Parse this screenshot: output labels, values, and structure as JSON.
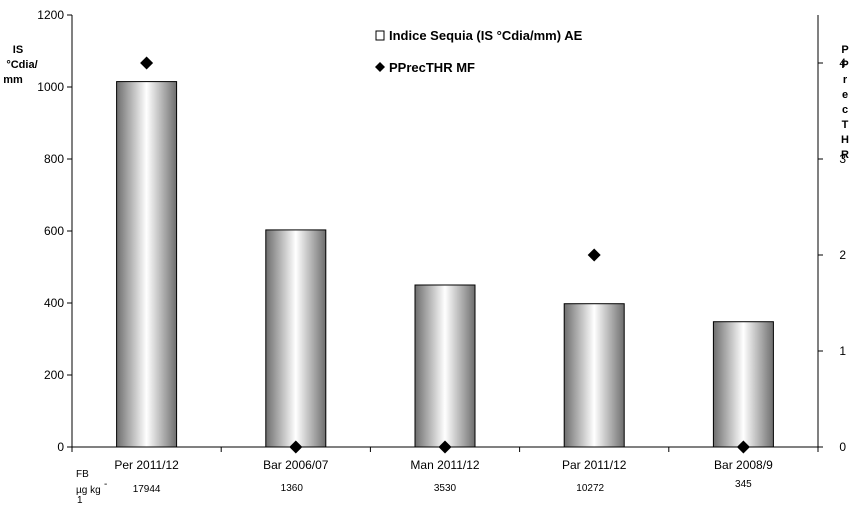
{
  "chart_data": {
    "type": "bar",
    "categories": [
      "Per 2011/12",
      "Bar 2006/07",
      "Man 2011/12",
      "Par 2011/12",
      "Bar  2008/9"
    ],
    "series": [
      {
        "name": "Indice Sequia (IS °Cdia/mm) AE",
        "kind": "bar",
        "axis": "left",
        "values": [
          1015,
          603,
          450,
          398,
          348
        ]
      },
      {
        "name": "PPrecTHR MF",
        "kind": "marker-diamond",
        "axis": "right",
        "values": [
          4,
          0,
          0,
          2,
          0
        ]
      }
    ],
    "y_left": {
      "label_lines": [
        "IS",
        "°Cdia/",
        "mm"
      ],
      "ylim": [
        0,
        1200
      ],
      "ticks": [
        "0",
        "200",
        "400",
        "600",
        "800",
        "1000",
        "1200"
      ]
    },
    "y_right": {
      "label_letters": [
        "P",
        "P",
        "r",
        "e",
        "c",
        "T",
        "H",
        "R"
      ],
      "ylim": [
        0,
        4.5
      ],
      "ticks": [
        "0",
        "1",
        "2",
        "3",
        "4"
      ]
    },
    "fb_row": {
      "label_line1": "FB",
      "label_line2": "µg kg",
      "label_sup": "-",
      "label_line3": "1",
      "values": [
        "17944",
        "1360",
        "3530",
        "10272",
        "345"
      ]
    },
    "legend_position": "top-center",
    "grid": false,
    "colors": {
      "bar_dark": "#6e6e6e",
      "bar_light": "#ffffff",
      "marker": "#000000",
      "axis": "#000000"
    }
  }
}
